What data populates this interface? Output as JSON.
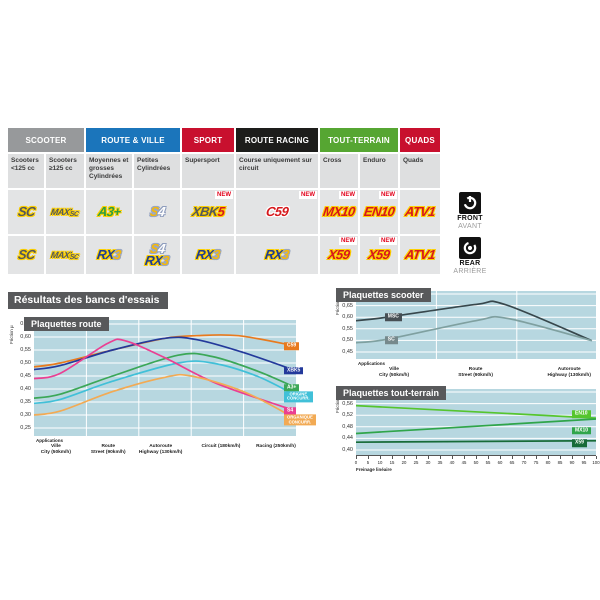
{
  "section_title": "Résultats des bancs d'essais",
  "table": {
    "categories": [
      {
        "label": "SCOOTER",
        "color": "#97999b",
        "span": 2
      },
      {
        "label": "ROUTE & VILLE",
        "color": "#1b75bb",
        "span": 2
      },
      {
        "label": "SPORT",
        "color": "#c8102e",
        "span": 1
      },
      {
        "label": "ROUTE RACING",
        "color": "#1d1d1b",
        "span": 1
      },
      {
        "label": "TOUT-TERRAIN",
        "color": "#56a632",
        "span": 2
      },
      {
        "label": "QUADS",
        "color": "#c8102e",
        "span": 1
      }
    ],
    "subheaders": [
      "Scooters <125 cc",
      "Scooters ≥125 cc",
      "Moyennes et grosses Cylindrées",
      "Petites Cylindrées",
      "Supersport",
      "Course uniquement sur circuit",
      "Cross",
      "Enduro",
      "Quads"
    ],
    "new_badge": "NEW",
    "front_row": [
      {
        "name": "SC",
        "logo": [
          [
            [
              "SC",
              "dark"
            ]
          ]
        ]
      },
      {
        "name": "MAXI SC",
        "logo": [
          [
            [
              "MAXI",
              "dark-sm"
            ],
            [
              "SC",
              "dark-xs"
            ]
          ]
        ]
      },
      {
        "name": "A3+",
        "logo": [
          [
            [
              "A3+",
              "green"
            ]
          ]
        ]
      },
      {
        "name": "S4",
        "logo": [
          [
            [
              "S",
              "gold"
            ],
            [
              "4",
              "white"
            ]
          ]
        ]
      },
      {
        "name": "XBK5",
        "logo": [
          [
            [
              "XBK",
              "dark"
            ],
            [
              "5",
              "red-y"
            ]
          ]
        ],
        "new": true
      },
      {
        "name": "C59",
        "logo": [
          [
            [
              "C59",
              "red-w"
            ]
          ]
        ],
        "new": true
      },
      {
        "name": "MX10",
        "logo": [
          [
            [
              "MX10",
              "red-y"
            ]
          ]
        ],
        "new": true
      },
      {
        "name": "EN10",
        "logo": [
          [
            [
              "EN10",
              "red-y"
            ]
          ]
        ],
        "new": true
      },
      {
        "name": "ATV1",
        "logo": [
          [
            [
              "ATV1",
              "red-y"
            ]
          ]
        ]
      }
    ],
    "rear_row": [
      {
        "name": "SC",
        "logo": [
          [
            [
              "SC",
              "dark"
            ]
          ]
        ]
      },
      {
        "name": "MAXI SC",
        "logo": [
          [
            [
              "MAXI",
              "dark-sm"
            ],
            [
              "SC",
              "dark-xs"
            ]
          ]
        ]
      },
      {
        "name": "RX3",
        "logo": [
          [
            [
              "RX",
              "blue"
            ],
            [
              "3",
              "gold"
            ]
          ]
        ]
      },
      {
        "name": "S4 / RX3",
        "logo": [
          [
            [
              "S",
              "gold"
            ],
            [
              "4",
              "white"
            ]
          ],
          [
            [
              "RX",
              "blue"
            ],
            [
              "3",
              "gold"
            ]
          ]
        ]
      },
      {
        "name": "RX3",
        "logo": [
          [
            [
              "RX",
              "blue"
            ],
            [
              "3",
              "gold"
            ]
          ]
        ]
      },
      {
        "name": "RX3",
        "logo": [
          [
            [
              "RX",
              "blue"
            ],
            [
              "3",
              "gold"
            ]
          ]
        ]
      },
      {
        "name": "X59",
        "logo": [
          [
            [
              "X59",
              "red-y"
            ]
          ]
        ],
        "new": true
      },
      {
        "name": "X59",
        "logo": [
          [
            [
              "X59",
              "red-y"
            ]
          ]
        ],
        "new": true
      },
      {
        "name": "ATV1",
        "logo": [
          [
            [
              "ATV1",
              "red-y"
            ]
          ]
        ]
      }
    ],
    "axle_front": {
      "label": "FRONT",
      "label_fr": "AVANT"
    },
    "axle_rear": {
      "label": "REAR",
      "label_fr": "ARRIÈRE"
    }
  },
  "chart_data": [
    {
      "type": "line",
      "title": "Plaquettes route",
      "ylabel": "Friction µ",
      "xlabel": "Applications",
      "ylim": [
        0.25,
        0.65
      ],
      "yticks": [
        0.65,
        0.6,
        0.55,
        0.5,
        0.45,
        0.4,
        0.35,
        0.3,
        0.25
      ],
      "grid": "white on light-blue",
      "legend_position": "right edge boxes",
      "categories": [
        "Ville / City (50km/h)",
        "Route / Street (90km/h)",
        "Autoroute / Highway (130km/h)",
        "Circuit (180km/h)",
        "Racing (250km/h)"
      ],
      "categories_lines": [
        [
          "Ville",
          "City (50km/h)"
        ],
        [
          "Route",
          "Street (90km/h)"
        ],
        [
          "Autoroute",
          "Highway (130km/h)"
        ],
        [
          "Circuit (180km/h)"
        ],
        [
          "Racing (250km/h)"
        ]
      ],
      "series": [
        {
          "name": "C59",
          "color": "#e87a1e",
          "points": [
            [
              0,
              0.485
            ],
            [
              0.1,
              0.5
            ],
            [
              0.3,
              0.55
            ],
            [
              0.5,
              0.595
            ],
            [
              0.62,
              0.605
            ],
            [
              0.78,
              0.605
            ],
            [
              1,
              0.565
            ]
          ]
        },
        {
          "name": "XBK5",
          "color": "#23399b",
          "points": [
            [
              0,
              0.475
            ],
            [
              0.1,
              0.49
            ],
            [
              0.3,
              0.55
            ],
            [
              0.5,
              0.595
            ],
            [
              0.62,
              0.59
            ],
            [
              0.8,
              0.54
            ],
            [
              1,
              0.47
            ]
          ]
        },
        {
          "name": "A3+",
          "color": "#3ba757",
          "points": [
            [
              0,
              0.365
            ],
            [
              0.1,
              0.38
            ],
            [
              0.3,
              0.45
            ],
            [
              0.55,
              0.53
            ],
            [
              0.68,
              0.525
            ],
            [
              0.85,
              0.47
            ],
            [
              1,
              0.405
            ]
          ]
        },
        {
          "name": "ORIGINE CONCURR.",
          "color": "#41c0d8",
          "points": [
            [
              0,
              0.345
            ],
            [
              0.1,
              0.36
            ],
            [
              0.3,
              0.43
            ],
            [
              0.55,
              0.5
            ],
            [
              0.68,
              0.5
            ],
            [
              0.85,
              0.45
            ],
            [
              1,
              0.375
            ]
          ]
        },
        {
          "name": "S4",
          "color": "#ea3f92",
          "points": [
            [
              0,
              0.44
            ],
            [
              0.1,
              0.46
            ],
            [
              0.28,
              0.575
            ],
            [
              0.35,
              0.585
            ],
            [
              0.5,
              0.52
            ],
            [
              0.7,
              0.42
            ],
            [
              1,
              0.315
            ]
          ]
        },
        {
          "name": "ORGANIQUE CONCURR.",
          "color": "#f2aa54",
          "points": [
            [
              0,
              0.3
            ],
            [
              0.1,
              0.315
            ],
            [
              0.3,
              0.39
            ],
            [
              0.5,
              0.445
            ],
            [
              0.6,
              0.45
            ],
            [
              0.8,
              0.39
            ],
            [
              1,
              0.285
            ]
          ]
        }
      ]
    },
    {
      "type": "line",
      "title": "Plaquettes scooter",
      "ylabel": "Friction µ",
      "xlabel": "Applications",
      "ylim": [
        0.45,
        0.7
      ],
      "yticks": [
        0.7,
        0.65,
        0.6,
        0.55,
        0.5,
        0.45
      ],
      "categories": [
        "Ville / City (50km/h)",
        "Route / Street (90km/h)",
        "Autoroute / Highway (130km/h)"
      ],
      "categories_lines": [
        [
          "Ville",
          "City (50km/h)"
        ],
        [
          "Route",
          "Street (90km/h)"
        ],
        [
          "Autoroute",
          "Highway (130km/h)"
        ]
      ],
      "series": [
        {
          "name": "MSC",
          "color": "#37474c",
          "box_color": "#474f54",
          "points": [
            [
              0,
              0.585
            ],
            [
              0.13,
              0.6
            ],
            [
              0.5,
              0.655
            ],
            [
              0.62,
              0.655
            ],
            [
              0.98,
              0.5
            ]
          ]
        },
        {
          "name": "SC",
          "color": "#7fa0a0",
          "box_color": "#76898c",
          "points": [
            [
              0,
              0.49
            ],
            [
              0.13,
              0.505
            ],
            [
              0.5,
              0.585
            ],
            [
              0.63,
              0.595
            ],
            [
              0.98,
              0.5
            ]
          ]
        }
      ]
    },
    {
      "type": "line",
      "title": "Plaquettes tout-terrain",
      "ylabel": "Friction µ",
      "xlabel": "Freinage linéaire",
      "ylim": [
        0.4,
        0.6
      ],
      "yticks": [
        0.6,
        0.56,
        0.52,
        0.48,
        0.44,
        0.4
      ],
      "xlim": [
        0,
        100
      ],
      "xticks": [
        0,
        5,
        10,
        15,
        20,
        25,
        30,
        35,
        40,
        45,
        50,
        55,
        60,
        65,
        70,
        75,
        80,
        85,
        90,
        95,
        100
      ],
      "series": [
        {
          "name": "EN10",
          "color": "#55c52e",
          "points": [
            [
              0,
              0.553
            ],
            [
              1,
              0.51
            ]
          ]
        },
        {
          "name": "MX10",
          "color": "#2fa54a",
          "points": [
            [
              0,
              0.457
            ],
            [
              1,
              0.507
            ]
          ]
        },
        {
          "name": "X59",
          "color": "#176b38",
          "points": [
            [
              0,
              0.427
            ],
            [
              1,
              0.432
            ]
          ]
        }
      ]
    }
  ]
}
